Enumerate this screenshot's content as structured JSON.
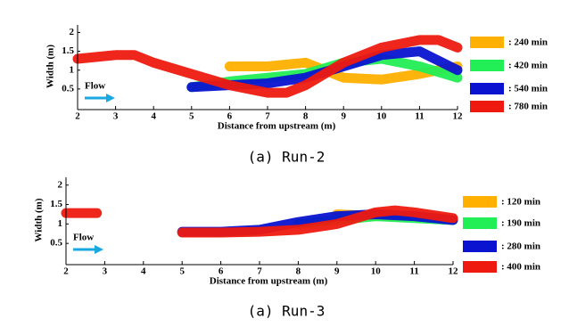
{
  "chart_data": [
    {
      "type": "line",
      "xlabel": "Distance from upstream (m)",
      "ylabel": "Width (m)",
      "caption": "(a) Run-2",
      "annotation": "Flow",
      "xlim": [
        2,
        12
      ],
      "ylim": [
        0,
        2.2
      ],
      "xticks": [
        2,
        3,
        4,
        5,
        6,
        7,
        8,
        9,
        10,
        11,
        12
      ],
      "yticks": [
        0.5,
        1,
        1.5,
        2
      ],
      "series": [
        {
          "name": ": 240 min",
          "color": "#ffb000",
          "x": [
            6,
            7,
            8,
            9,
            10,
            11,
            12
          ],
          "values": [
            1.1,
            1.1,
            1.2,
            0.8,
            0.75,
            0.9,
            1.1
          ]
        },
        {
          "name": ": 420 min",
          "color": "#22ee55",
          "x": [
            5,
            6,
            7,
            8,
            9,
            10,
            11,
            12
          ],
          "values": [
            0.55,
            0.7,
            0.8,
            0.9,
            1.2,
            1.3,
            1.1,
            0.8
          ]
        },
        {
          "name": ": 540 min",
          "color": "#0a14d0",
          "x": [
            5,
            6,
            7,
            8,
            9,
            10,
            11,
            12
          ],
          "values": [
            0.55,
            0.6,
            0.65,
            0.8,
            1.1,
            1.4,
            1.5,
            1.0
          ]
        },
        {
          "name": ": 780 min",
          "color": "#ee1a10",
          "x": [
            2,
            3,
            3.5,
            4,
            5,
            6,
            7,
            7.5,
            8,
            9,
            10,
            11,
            11.5,
            12
          ],
          "values": [
            1.3,
            1.4,
            1.4,
            1.2,
            0.9,
            0.6,
            0.4,
            0.4,
            0.6,
            1.2,
            1.6,
            1.8,
            1.8,
            1.6
          ]
        }
      ]
    },
    {
      "type": "line",
      "xlabel": "Distance from upstream (m)",
      "ylabel": "Width (m)",
      "caption": "(a) Run-3",
      "annotation": "Flow",
      "xlim": [
        2,
        12
      ],
      "ylim": [
        0,
        2.2
      ],
      "xticks": [
        2,
        3,
        4,
        5,
        6,
        7,
        8,
        9,
        10,
        11,
        12
      ],
      "yticks": [
        0.5,
        1,
        1.5,
        2
      ],
      "series": [
        {
          "name": ": 120 min",
          "color": "#ffb000",
          "x": [
            9,
            10,
            11
          ],
          "values": [
            1.25,
            1.2,
            1.2
          ]
        },
        {
          "name": ": 190 min",
          "color": "#22ee55",
          "x": [
            8,
            9,
            10,
            11,
            12
          ],
          "values": [
            1.0,
            1.1,
            1.2,
            1.15,
            1.1
          ]
        },
        {
          "name": ": 280 min",
          "color": "#0a14d0",
          "x": [
            5,
            6,
            7,
            8,
            9,
            10,
            11,
            12
          ],
          "values": [
            0.8,
            0.8,
            0.85,
            1.05,
            1.2,
            1.25,
            1.2,
            1.1
          ]
        },
        {
          "name": ": 400 min",
          "color": "#ee1a10",
          "x": [
            2,
            2.8,
            3.5,
            5,
            6,
            7,
            8,
            9,
            10,
            10.5,
            11,
            12
          ],
          "values": [
            1.28,
            1.28,
            null,
            0.78,
            0.78,
            0.8,
            0.85,
            1.0,
            1.3,
            1.35,
            1.3,
            1.15
          ]
        }
      ]
    }
  ]
}
